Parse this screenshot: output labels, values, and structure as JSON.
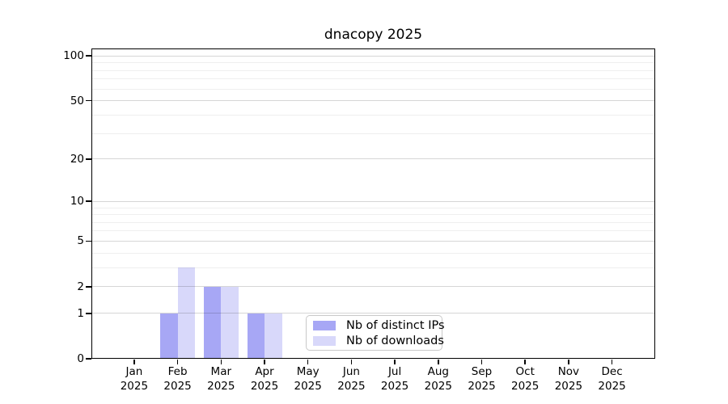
{
  "chart_data": {
    "type": "bar",
    "title": "dnacopy 2025",
    "year": "2025",
    "categories": [
      "Jan",
      "Feb",
      "Mar",
      "Apr",
      "May",
      "Jun",
      "Jul",
      "Aug",
      "Sep",
      "Oct",
      "Nov",
      "Dec"
    ],
    "series": [
      {
        "name": "Nb of distinct IPs",
        "color": "#a7a7f5",
        "values": [
          0,
          1,
          2,
          1,
          0,
          0,
          0,
          0,
          0,
          0,
          0,
          0
        ]
      },
      {
        "name": "Nb of downloads",
        "color": "#d8d8fa",
        "values": [
          0,
          3,
          2,
          1,
          0,
          0,
          0,
          0,
          0,
          0,
          0,
          0
        ]
      }
    ],
    "y_axis": {
      "scale": "log10(1+y)",
      "major_ticks": [
        0,
        1,
        2,
        5,
        10,
        20,
        50,
        100
      ],
      "minor_gridlines": [
        3,
        4,
        6,
        7,
        8,
        9,
        30,
        40,
        60,
        70,
        80,
        90
      ],
      "ylim": [
        0,
        113
      ]
    },
    "xlabel": "",
    "ylabel": "",
    "grid": "horizontal",
    "legend": {
      "position": "inside-bottom-center"
    },
    "colors": {
      "axis": "#000000",
      "major_grid": "#d6d6d6",
      "minor_grid": "#f0f0f0",
      "legend_border": "#c9c9c9",
      "background": "#ffffff"
    }
  }
}
